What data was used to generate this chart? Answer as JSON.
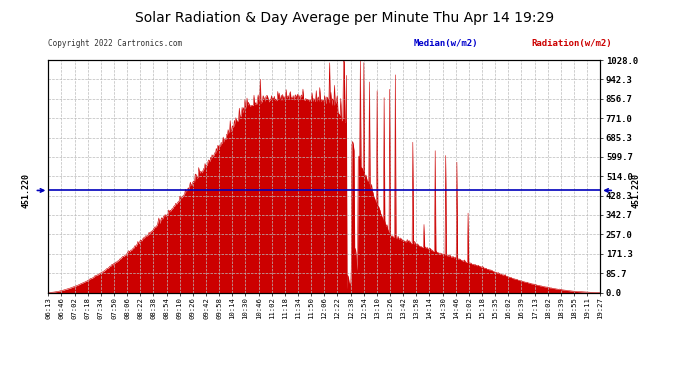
{
  "title": "Solar Radiation & Day Average per Minute Thu Apr 14 19:29",
  "copyright": "Copyright 2022 Cartronics.com",
  "median_value": 451.22,
  "median_label": "451.220",
  "y_max": 1028.0,
  "y_min": 0.0,
  "y_ticks": [
    0.0,
    85.7,
    171.3,
    257.0,
    342.7,
    428.3,
    514.0,
    599.7,
    685.3,
    771.0,
    856.7,
    942.3,
    1028.0
  ],
  "background_color": "#ffffff",
  "fill_color": "#cc0000",
  "median_line_color": "#0000bb",
  "grid_color": "#bbbbbb",
  "title_color": "#000000",
  "copyright_color": "#333333",
  "legend_median_color": "#0000cc",
  "legend_radiation_color": "#cc0000",
  "x_labels": [
    "06:13",
    "06:46",
    "07:02",
    "07:18",
    "07:34",
    "07:50",
    "08:06",
    "08:22",
    "08:38",
    "08:54",
    "09:10",
    "09:26",
    "09:42",
    "09:58",
    "10:14",
    "10:30",
    "10:46",
    "11:02",
    "11:18",
    "11:34",
    "11:50",
    "12:06",
    "12:22",
    "12:38",
    "12:54",
    "13:10",
    "13:26",
    "13:42",
    "13:58",
    "14:14",
    "14:30",
    "14:46",
    "15:02",
    "15:18",
    "15:35",
    "16:02",
    "16:39",
    "17:13",
    "18:02",
    "18:39",
    "18:55",
    "19:11",
    "19:27"
  ]
}
